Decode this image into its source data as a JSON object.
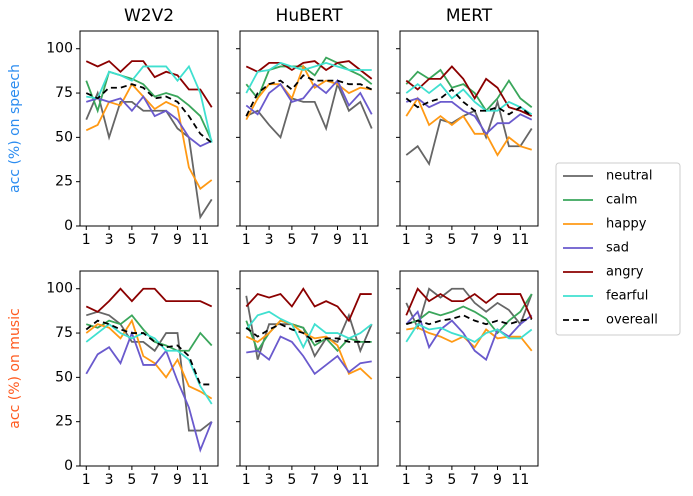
{
  "chart_data": [
    {
      "type": "line",
      "title": "W2V2",
      "ylabel": "acc (%) on speech",
      "ylabel_color": "#2b8cf0",
      "x": [
        1,
        2,
        3,
        4,
        5,
        6,
        7,
        8,
        9,
        10,
        11,
        12
      ],
      "xlim": [
        0.45,
        12.55
      ],
      "xticks": [
        1,
        3,
        5,
        7,
        9,
        11
      ],
      "ylim": [
        0,
        110
      ],
      "yticks": [
        0,
        25,
        50,
        75,
        100
      ],
      "series": [
        {
          "name": "neutral",
          "color": "#666666",
          "values": [
            60,
            75,
            50,
            70,
            70,
            65,
            65,
            65,
            55,
            50,
            5,
            15
          ]
        },
        {
          "name": "calm",
          "color": "#3aa65b",
          "values": [
            82,
            65,
            87,
            85,
            83,
            80,
            73,
            75,
            73,
            68,
            62,
            48
          ]
        },
        {
          "name": "happy",
          "color": "#ff9914",
          "values": [
            54,
            57,
            70,
            68,
            80,
            73,
            66,
            70,
            67,
            33,
            21,
            26
          ]
        },
        {
          "name": "sad",
          "color": "#6a5acd",
          "values": [
            70,
            72,
            70,
            72,
            65,
            73,
            62,
            65,
            60,
            50,
            45,
            48
          ]
        },
        {
          "name": "angry",
          "color": "#8b0000",
          "values": [
            93,
            90,
            93,
            87,
            93,
            93,
            84,
            87,
            85,
            77,
            77,
            67
          ]
        },
        {
          "name": "fearful",
          "color": "#40e0d0",
          "values": [
            73,
            72,
            87,
            85,
            82,
            90,
            90,
            90,
            82,
            90,
            75,
            47
          ]
        },
        {
          "name": "overeall",
          "color": "#000000",
          "dash": "6,4",
          "values": [
            75,
            72,
            78,
            78,
            80,
            78,
            72,
            73,
            70,
            62,
            52,
            47
          ]
        }
      ]
    },
    {
      "type": "line",
      "title": "HuBERT",
      "x": [
        1,
        2,
        3,
        4,
        5,
        6,
        7,
        8,
        9,
        10,
        11,
        12
      ],
      "xlim": [
        0.45,
        12.55
      ],
      "xticks": [
        1,
        3,
        5,
        7,
        9,
        11
      ],
      "ylim": [
        0,
        110
      ],
      "yticks": [
        0,
        25,
        50,
        75,
        100
      ],
      "series": [
        {
          "name": "neutral",
          "color": "#666666",
          "values": [
            62,
            65,
            57,
            50,
            72,
            70,
            70,
            55,
            80,
            65,
            70,
            55
          ]
        },
        {
          "name": "calm",
          "color": "#3aa65b",
          "values": [
            80,
            72,
            88,
            90,
            90,
            90,
            85,
            95,
            92,
            88,
            85,
            80
          ]
        },
        {
          "name": "happy",
          "color": "#ff9914",
          "values": [
            60,
            72,
            80,
            80,
            72,
            90,
            78,
            82,
            80,
            75,
            78,
            77
          ]
        },
        {
          "name": "sad",
          "color": "#6a5acd",
          "values": [
            68,
            63,
            75,
            80,
            70,
            72,
            80,
            75,
            82,
            68,
            75,
            63
          ]
        },
        {
          "name": "angry",
          "color": "#8b0000",
          "values": [
            90,
            87,
            92,
            92,
            88,
            92,
            93,
            88,
            92,
            93,
            88,
            83
          ]
        },
        {
          "name": "fearful",
          "color": "#40e0d0",
          "values": [
            75,
            87,
            88,
            92,
            90,
            88,
            90,
            92,
            90,
            88,
            88,
            88
          ]
        },
        {
          "name": "overeall",
          "color": "#000000",
          "dash": "6,4",
          "values": [
            62,
            75,
            80,
            82,
            77,
            85,
            82,
            82,
            82,
            80,
            80,
            77
          ]
        }
      ]
    },
    {
      "type": "line",
      "title": "MERT",
      "x": [
        1,
        2,
        3,
        4,
        5,
        6,
        7,
        8,
        9,
        10,
        11,
        12
      ],
      "xlim": [
        0.45,
        12.55
      ],
      "xticks": [
        1,
        3,
        5,
        7,
        9,
        11
      ],
      "ylim": [
        0,
        110
      ],
      "yticks": [
        0,
        25,
        50,
        75,
        100
      ],
      "series": [
        {
          "name": "neutral",
          "color": "#666666",
          "values": [
            40,
            45,
            35,
            60,
            58,
            62,
            65,
            50,
            70,
            45,
            45,
            55
          ]
        },
        {
          "name": "calm",
          "color": "#3aa65b",
          "values": [
            80,
            87,
            83,
            88,
            78,
            80,
            75,
            65,
            72,
            82,
            72,
            67
          ]
        },
        {
          "name": "happy",
          "color": "#ff9914",
          "values": [
            62,
            72,
            57,
            62,
            57,
            62,
            52,
            52,
            40,
            50,
            45,
            43
          ]
        },
        {
          "name": "sad",
          "color": "#6a5acd",
          "values": [
            70,
            72,
            67,
            70,
            70,
            65,
            62,
            52,
            58,
            58,
            63,
            60
          ]
        },
        {
          "name": "angry",
          "color": "#8b0000",
          "values": [
            82,
            77,
            83,
            83,
            90,
            83,
            72,
            83,
            78,
            67,
            65,
            62
          ]
        },
        {
          "name": "fearful",
          "color": "#40e0d0",
          "values": [
            75,
            80,
            75,
            80,
            72,
            77,
            70,
            65,
            65,
            70,
            67,
            63
          ]
        },
        {
          "name": "overeall",
          "color": "#000000",
          "dash": "6,4",
          "values": [
            72,
            67,
            70,
            72,
            77,
            70,
            65,
            65,
            67,
            63,
            67,
            62
          ]
        }
      ]
    },
    {
      "type": "line",
      "ylabel": "acc (%) on music",
      "ylabel_color": "#ff5a1f",
      "x": [
        1,
        2,
        3,
        4,
        5,
        6,
        7,
        8,
        9,
        10,
        11,
        12
      ],
      "xlim": [
        0.45,
        12.55
      ],
      "xticks": [
        1,
        3,
        5,
        7,
        9,
        11
      ],
      "ylim": [
        0,
        110
      ],
      "yticks": [
        0,
        25,
        50,
        75,
        100
      ],
      "series": [
        {
          "name": "neutral",
          "color": "#666666",
          "values": [
            85,
            87,
            85,
            80,
            70,
            70,
            65,
            75,
            75,
            20,
            20,
            25
          ]
        },
        {
          "name": "calm",
          "color": "#3aa65b",
          "values": [
            80,
            78,
            82,
            80,
            85,
            77,
            70,
            68,
            65,
            65,
            75,
            68
          ]
        },
        {
          "name": "happy",
          "color": "#ff9914",
          "values": [
            75,
            80,
            78,
            72,
            82,
            62,
            58,
            50,
            60,
            45,
            42,
            38
          ]
        },
        {
          "name": "sad",
          "color": "#6a5acd",
          "values": [
            52,
            63,
            67,
            58,
            75,
            57,
            57,
            65,
            48,
            33,
            9,
            25
          ]
        },
        {
          "name": "angry",
          "color": "#8b0000",
          "values": [
            90,
            87,
            93,
            100,
            93,
            100,
            100,
            93,
            93,
            93,
            93,
            90
          ]
        },
        {
          "name": "fearful",
          "color": "#40e0d0",
          "values": [
            70,
            75,
            80,
            75,
            72,
            75,
            72,
            65,
            65,
            60,
            45,
            35
          ]
        },
        {
          "name": "overeall",
          "color": "#000000",
          "dash": "6,4",
          "values": [
            77,
            82,
            80,
            77,
            75,
            75,
            70,
            67,
            68,
            62,
            46,
            46
          ]
        }
      ]
    },
    {
      "type": "line",
      "x": [
        1,
        2,
        3,
        4,
        5,
        6,
        7,
        8,
        9,
        10,
        11,
        12
      ],
      "xlim": [
        0.45,
        12.55
      ],
      "xticks": [
        1,
        3,
        5,
        7,
        9,
        11
      ],
      "ylim": [
        0,
        110
      ],
      "yticks": [
        0,
        25,
        50,
        75,
        100
      ],
      "series": [
        {
          "name": "neutral",
          "color": "#666666",
          "values": [
            96,
            60,
            80,
            80,
            80,
            78,
            62,
            72,
            70,
            85,
            65,
            80
          ]
        },
        {
          "name": "calm",
          "color": "#3aa65b",
          "values": [
            82,
            65,
            75,
            82,
            80,
            78,
            68,
            72,
            65,
            72,
            70,
            70
          ]
        },
        {
          "name": "happy",
          "color": "#ff9914",
          "values": [
            73,
            70,
            75,
            82,
            80,
            75,
            72,
            73,
            68,
            52,
            55,
            49
          ]
        },
        {
          "name": "sad",
          "color": "#6a5acd",
          "values": [
            64,
            65,
            60,
            73,
            70,
            62,
            52,
            57,
            62,
            53,
            58,
            59
          ]
        },
        {
          "name": "angry",
          "color": "#8b0000",
          "values": [
            90,
            97,
            95,
            97,
            90,
            100,
            90,
            93,
            90,
            82,
            97,
            97
          ]
        },
        {
          "name": "fearful",
          "color": "#40e0d0",
          "values": [
            77,
            85,
            87,
            83,
            80,
            67,
            80,
            75,
            75,
            72,
            75,
            80
          ]
        },
        {
          "name": "overeall",
          "color": "#000000",
          "dash": "6,4",
          "values": [
            78,
            73,
            77,
            80,
            77,
            75,
            70,
            72,
            72,
            70,
            70,
            70
          ]
        }
      ]
    },
    {
      "type": "line",
      "x": [
        1,
        2,
        3,
        4,
        5,
        6,
        7,
        8,
        9,
        10,
        11,
        12
      ],
      "xlim": [
        0.45,
        12.55
      ],
      "xticks": [
        1,
        3,
        5,
        7,
        9,
        11
      ],
      "ylim": [
        0,
        110
      ],
      "yticks": [
        0,
        25,
        50,
        75,
        100
      ],
      "series": [
        {
          "name": "neutral",
          "color": "#666666",
          "values": [
            92,
            78,
            100,
            95,
            100,
            100,
            92,
            87,
            92,
            88,
            80,
            97
          ]
        },
        {
          "name": "calm",
          "color": "#3aa65b",
          "values": [
            80,
            82,
            87,
            85,
            87,
            90,
            87,
            83,
            75,
            82,
            87,
            97
          ]
        },
        {
          "name": "happy",
          "color": "#ff9914",
          "values": [
            77,
            78,
            75,
            73,
            70,
            73,
            67,
            77,
            72,
            73,
            73,
            65
          ]
        },
        {
          "name": "sad",
          "color": "#6a5acd",
          "values": [
            80,
            87,
            67,
            77,
            82,
            75,
            65,
            60,
            77,
            73,
            80,
            85
          ]
        },
        {
          "name": "angry",
          "color": "#8b0000",
          "values": [
            85,
            100,
            93,
            97,
            93,
            93,
            97,
            92,
            97,
            97,
            97,
            83
          ]
        },
        {
          "name": "fearful",
          "color": "#40e0d0",
          "values": [
            70,
            80,
            77,
            78,
            75,
            73,
            70,
            75,
            77,
            72,
            72,
            77
          ]
        },
        {
          "name": "overeall",
          "color": "#000000",
          "dash": "6,4",
          "values": [
            80,
            82,
            80,
            82,
            83,
            85,
            82,
            80,
            82,
            80,
            82,
            83
          ]
        }
      ]
    }
  ]
}
